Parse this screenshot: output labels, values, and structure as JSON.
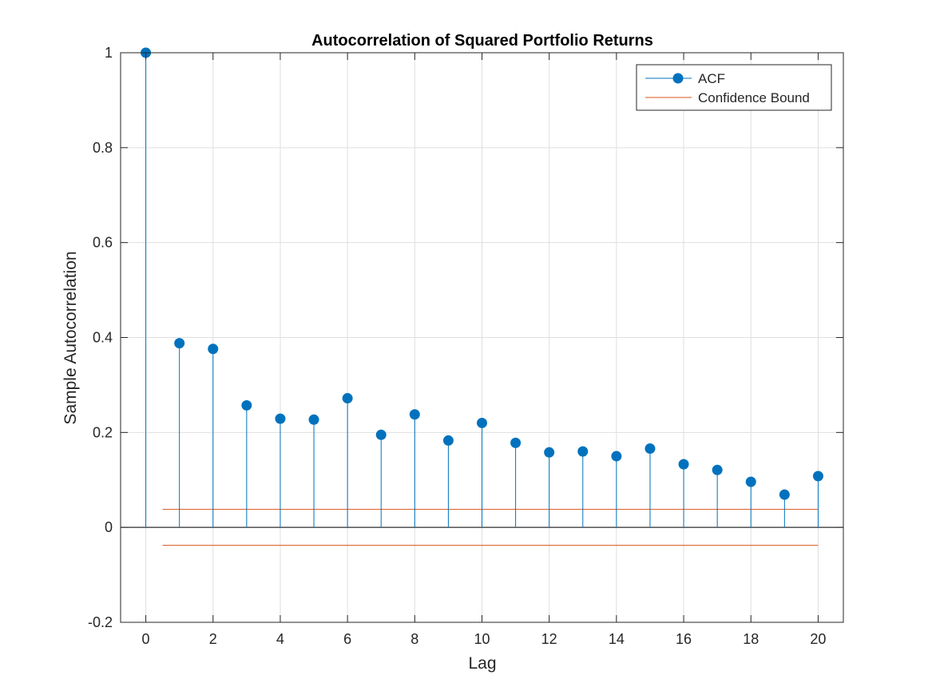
{
  "chart_data": {
    "type": "stem",
    "title": "Autocorrelation of Squared Portfolio Returns",
    "xlabel": "Lag",
    "ylabel": "Sample Autocorrelation",
    "xlim": [
      -0.75,
      20.75
    ],
    "ylim": [
      -0.2,
      1.0
    ],
    "xticks": [
      0,
      2,
      4,
      6,
      8,
      10,
      12,
      14,
      16,
      18,
      20
    ],
    "xtick_labels": [
      "0",
      "2",
      "4",
      "6",
      "8",
      "10",
      "12",
      "14",
      "16",
      "18",
      "20"
    ],
    "yticks": [
      -0.2,
      0,
      0.2,
      0.4,
      0.6,
      0.8,
      1.0
    ],
    "ytick_labels": [
      "-0.2",
      "0",
      "0.2",
      "0.4",
      "0.6",
      "0.8",
      "1"
    ],
    "grid": true,
    "legend_position": "top-right",
    "series": [
      {
        "name": "ACF",
        "color": "#0072BD",
        "x": [
          0,
          1,
          2,
          3,
          4,
          5,
          6,
          7,
          8,
          9,
          10,
          11,
          12,
          13,
          14,
          15,
          16,
          17,
          18,
          19,
          20
        ],
        "values": [
          1.0,
          0.388,
          0.376,
          0.257,
          0.229,
          0.227,
          0.272,
          0.195,
          0.238,
          0.183,
          0.22,
          0.178,
          0.158,
          0.16,
          0.15,
          0.166,
          0.133,
          0.121,
          0.096,
          0.069,
          0.108
        ]
      },
      {
        "name": "Confidence Bound",
        "color": "#D95319",
        "x_range": [
          0.5,
          20
        ],
        "upper": 0.0379,
        "lower": -0.0379
      }
    ]
  },
  "colors": {
    "axis": "#262626",
    "grid": "#dfdfdf",
    "zero_line": "#000000"
  }
}
